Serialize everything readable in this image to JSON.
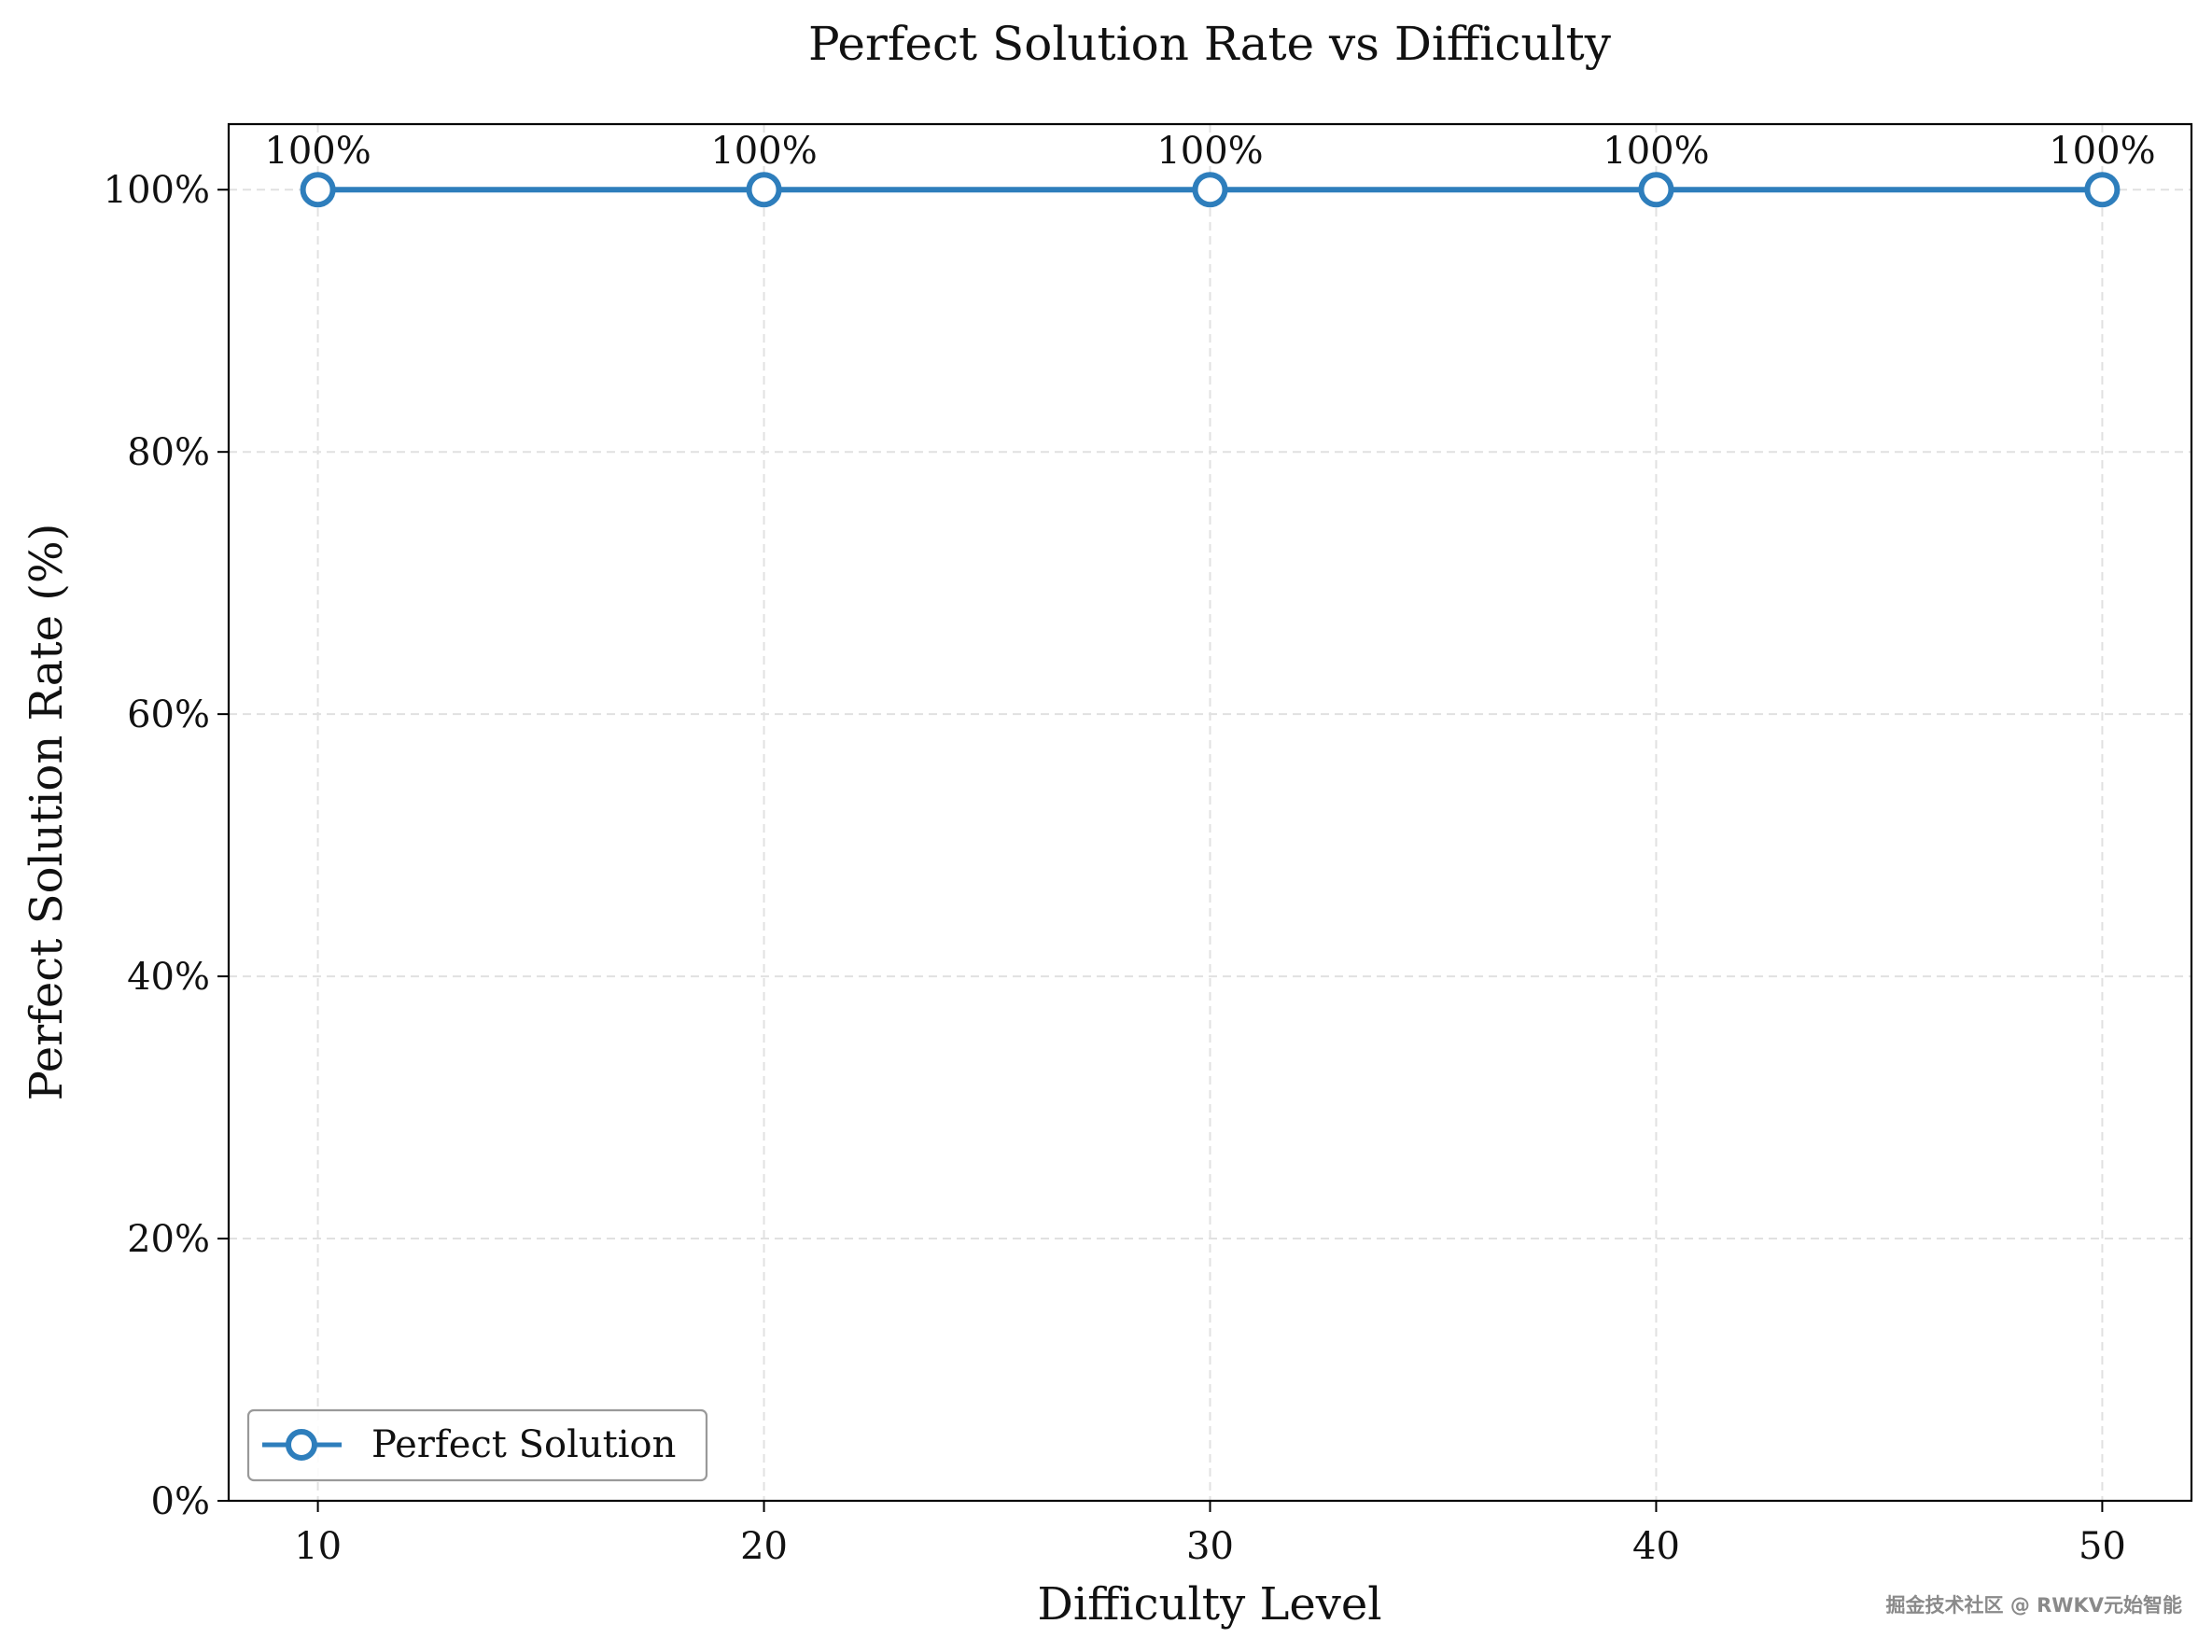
{
  "chart_data": {
    "type": "line",
    "title": "Perfect Solution Rate vs Difficulty",
    "xlabel": "Difficulty Level",
    "ylabel": "Perfect Solution Rate (%)",
    "x": [
      10,
      20,
      30,
      40,
      50
    ],
    "xlim": [
      8,
      52
    ],
    "xticks": [
      10,
      20,
      30,
      40,
      50
    ],
    "ylim": [
      0,
      105
    ],
    "yticks": [
      0,
      20,
      40,
      60,
      80,
      100
    ],
    "ytick_labels": [
      "0%",
      "20%",
      "40%",
      "60%",
      "80%",
      "100%"
    ],
    "grid": true,
    "legend_position": "lower-left",
    "series": [
      {
        "name": "Perfect Solution",
        "values": [
          100,
          100,
          100,
          100,
          100
        ],
        "data_labels": [
          "100%",
          "100%",
          "100%",
          "100%",
          "100%"
        ],
        "color": "#2e7ebc",
        "marker": "open-circle"
      }
    ]
  },
  "watermark": "掘金技术社区 @ RWKV元始智能"
}
